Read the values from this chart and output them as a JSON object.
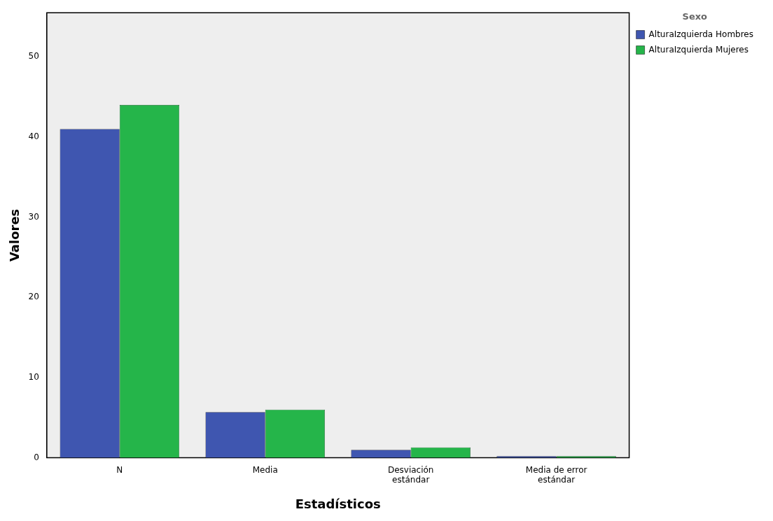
{
  "chart_data": {
    "type": "bar",
    "xlabel": "Estadísticos",
    "ylabel": "Valores",
    "legend_title": "Sexo",
    "categories": [
      "N",
      "Media",
      "Desviación estándar",
      "Media de error estándar"
    ],
    "series": [
      {
        "name": "AlturaIzquierda Hombres",
        "color": "#3f56b0",
        "values": [
          41,
          5.7,
          1.0,
          0.2
        ]
      },
      {
        "name": "AlturaIzquierda Mujeres",
        "color": "#25b54a",
        "values": [
          44,
          6.0,
          1.3,
          0.2
        ]
      }
    ],
    "ylim": [
      0,
      55.5
    ],
    "yticks": [
      0,
      10,
      20,
      30,
      40,
      50
    ],
    "grid": false,
    "legend": "top right"
  }
}
